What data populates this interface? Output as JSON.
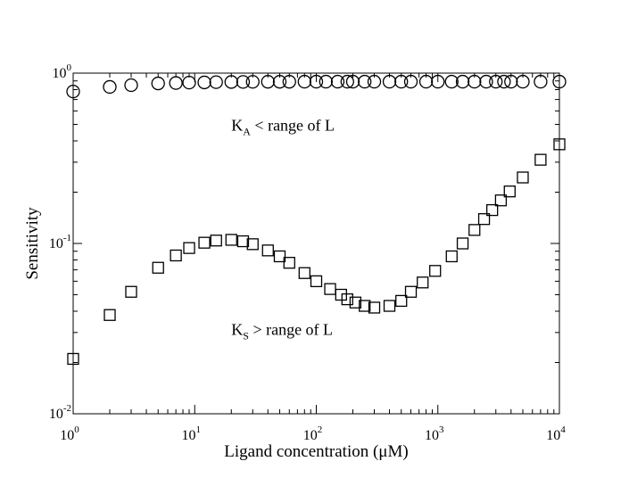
{
  "chart_data": {
    "type": "scatter",
    "title": "",
    "xlabel": "Ligand concentration (μM)",
    "ylabel": "Sensitivity",
    "xscale": "log",
    "yscale": "log",
    "xlim": [
      1,
      10000
    ],
    "ylim": [
      0.01,
      1
    ],
    "grid": false,
    "x_ticks": [
      {
        "base": "10",
        "exp": "0",
        "value": 1
      },
      {
        "base": "10",
        "exp": "1",
        "value": 10
      },
      {
        "base": "10",
        "exp": "2",
        "value": 100
      },
      {
        "base": "10",
        "exp": "3",
        "value": 1000
      },
      {
        "base": "10",
        "exp": "4",
        "value": 10000
      }
    ],
    "y_ticks": [
      {
        "base": "10",
        "exp": "-2",
        "value": 0.01
      },
      {
        "base": "10",
        "exp": "-1",
        "value": 0.1
      },
      {
        "base": "10",
        "exp": "0",
        "value": 1
      }
    ],
    "series": [
      {
        "name": "K_A < range of L",
        "marker": "circle",
        "points": [
          [
            1,
            0.78
          ],
          [
            2,
            0.83
          ],
          [
            3,
            0.85
          ],
          [
            5,
            0.87
          ],
          [
            7,
            0.875
          ],
          [
            9,
            0.88
          ],
          [
            12,
            0.882
          ],
          [
            15,
            0.885
          ],
          [
            20,
            0.887
          ],
          [
            25,
            0.888
          ],
          [
            30,
            0.889
          ],
          [
            40,
            0.89
          ],
          [
            50,
            0.89
          ],
          [
            60,
            0.89
          ],
          [
            80,
            0.891
          ],
          [
            100,
            0.891
          ],
          [
            120,
            0.891
          ],
          [
            150,
            0.891
          ],
          [
            180,
            0.891
          ],
          [
            200,
            0.891
          ],
          [
            250,
            0.891
          ],
          [
            300,
            0.891
          ],
          [
            400,
            0.891
          ],
          [
            500,
            0.891
          ],
          [
            600,
            0.891
          ],
          [
            800,
            0.891
          ],
          [
            1000,
            0.891
          ],
          [
            1300,
            0.891
          ],
          [
            1600,
            0.891
          ],
          [
            2000,
            0.891
          ],
          [
            2500,
            0.891
          ],
          [
            3000,
            0.891
          ],
          [
            3500,
            0.891
          ],
          [
            4000,
            0.891
          ],
          [
            5000,
            0.891
          ],
          [
            7000,
            0.891
          ],
          [
            10000,
            0.891
          ]
        ]
      },
      {
        "name": "K_S > range of L",
        "marker": "square",
        "points": [
          [
            1,
            0.021
          ],
          [
            2,
            0.038
          ],
          [
            3,
            0.052
          ],
          [
            5,
            0.072
          ],
          [
            7,
            0.085
          ],
          [
            9,
            0.094
          ],
          [
            12,
            0.101
          ],
          [
            15,
            0.104
          ],
          [
            20,
            0.105
          ],
          [
            25,
            0.103
          ],
          [
            30,
            0.099
          ],
          [
            40,
            0.091
          ],
          [
            50,
            0.084
          ],
          [
            60,
            0.077
          ],
          [
            80,
            0.067
          ],
          [
            100,
            0.06
          ],
          [
            130,
            0.054
          ],
          [
            160,
            0.05
          ],
          [
            180,
            0.047
          ],
          [
            210,
            0.045
          ],
          [
            250,
            0.043
          ],
          [
            300,
            0.042
          ],
          [
            400,
            0.043
          ],
          [
            500,
            0.046
          ],
          [
            600,
            0.052
          ],
          [
            750,
            0.059
          ],
          [
            950,
            0.069
          ],
          [
            1300,
            0.084
          ],
          [
            1600,
            0.1
          ],
          [
            2000,
            0.12
          ],
          [
            2400,
            0.139
          ],
          [
            2800,
            0.157
          ],
          [
            3300,
            0.179
          ],
          [
            3900,
            0.202
          ],
          [
            5000,
            0.244
          ],
          [
            7000,
            0.31
          ],
          [
            10000,
            0.382
          ]
        ]
      }
    ],
    "annotations": [
      {
        "main": "K",
        "sub": "A",
        "rest": " < range of L",
        "x": 20,
        "y": 0.46
      },
      {
        "main": "K",
        "sub": "S",
        "rest": " > range of L",
        "x": 20,
        "y": 0.029
      }
    ]
  }
}
